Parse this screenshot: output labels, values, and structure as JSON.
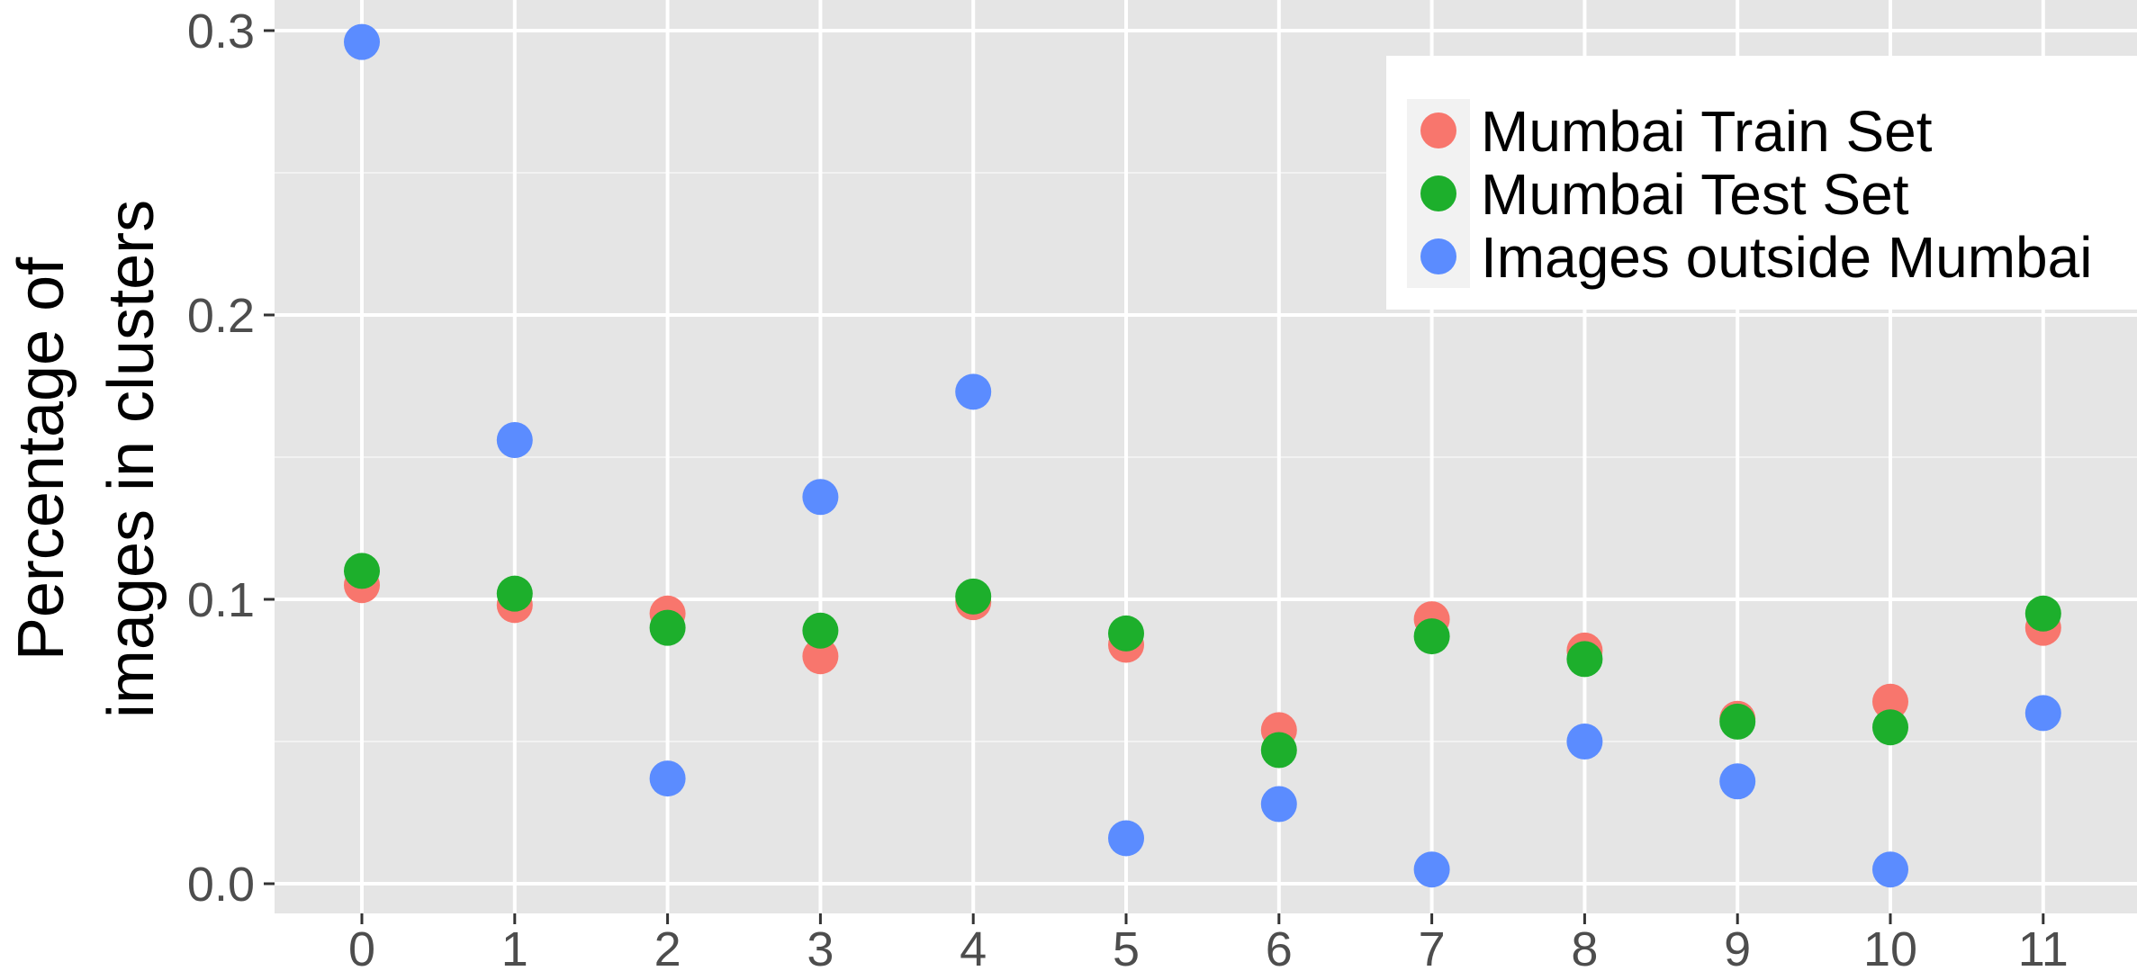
{
  "chart_data": {
    "type": "scatter",
    "title": "",
    "xlabel": "",
    "ylabel": "Percentage of images in clusters",
    "ylabel_lines": [
      "Percentage of",
      "images in clusters"
    ],
    "categories": [
      "0",
      "1",
      "2",
      "3",
      "4",
      "5",
      "6",
      "7",
      "8",
      "9",
      "10",
      "11"
    ],
    "y_ticks": [
      "0.0",
      "0.1",
      "0.2",
      "0.3"
    ],
    "ylim": [
      -0.01,
      0.31
    ],
    "grid": true,
    "legend_position": "top-right",
    "series": [
      {
        "name": "Mumbai Train Set",
        "color": "#F8766D",
        "values": [
          0.105,
          0.098,
          0.095,
          0.08,
          0.099,
          0.084,
          0.054,
          0.093,
          0.082,
          0.058,
          0.064,
          0.09
        ]
      },
      {
        "name": "Mumbai Test Set",
        "color": "#1DAF2C",
        "values": [
          0.11,
          0.102,
          0.09,
          0.089,
          0.101,
          0.088,
          0.047,
          0.087,
          0.079,
          0.057,
          0.055,
          0.095
        ]
      },
      {
        "name": "Images outside Mumbai",
        "color": "#5B8CFF",
        "values": [
          0.296,
          0.156,
          0.037,
          0.136,
          0.173,
          0.016,
          0.028,
          0.005,
          0.05,
          0.036,
          0.005,
          0.06
        ]
      }
    ]
  }
}
